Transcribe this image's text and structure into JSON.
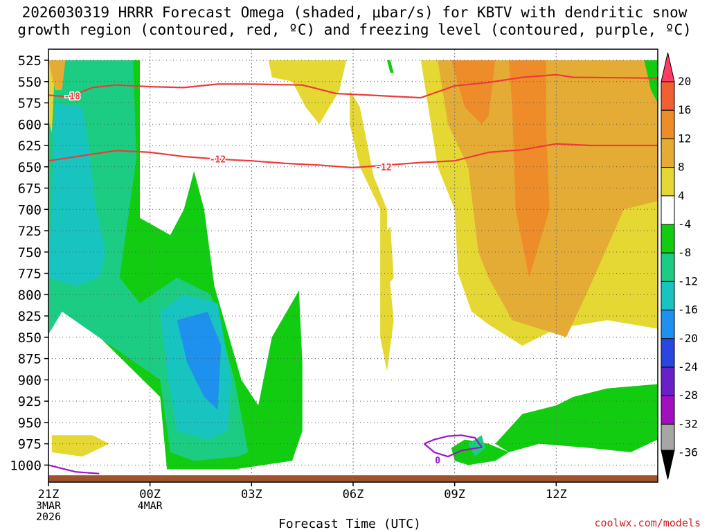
{
  "title_line1": "2026030319 HRRR Forecast Omega (shaded, μbar/s) for KBTV with dendritic snow",
  "title_line2": "growth region (contoured, red, ºC) and freezing level (contoured, purple, ºC)",
  "credit": "coolwx.com/models",
  "chart_data": {
    "type": "heatmap",
    "title": "2026030319 HRRR Forecast Omega (shaded, μbar/s) for KBTV with dendritic snow growth region (contoured, red, ºC) and freezing level (contoured, purple, ºC)",
    "xlabel": "Forecast Time (UTC)",
    "ylabel": "",
    "xlim_hours_from_00z": [
      -3.0,
      15.0
    ],
    "ylim_mb": [
      1020,
      512
    ],
    "y_ticks": [
      525,
      550,
      575,
      600,
      625,
      650,
      675,
      700,
      725,
      750,
      775,
      800,
      825,
      850,
      875,
      900,
      925,
      950,
      975,
      1000
    ],
    "x_ticks": [
      {
        "hour": -3,
        "lines": [
          "21Z",
          "3MAR",
          "2026"
        ]
      },
      {
        "hour": 0,
        "lines": [
          "00Z",
          "4MAR"
        ]
      },
      {
        "hour": 3,
        "lines": [
          "03Z"
        ]
      },
      {
        "hour": 6,
        "lines": [
          "06Z"
        ]
      },
      {
        "hour": 9,
        "lines": [
          "09Z"
        ]
      },
      {
        "hour": 12,
        "lines": [
          "12Z"
        ]
      }
    ],
    "grid": true,
    "colorbar": {
      "labels": [
        "20",
        "16",
        "12",
        "8",
        "4",
        "-4",
        "-8",
        "-12",
        "-16",
        "-20",
        "-24",
        "-28",
        "-32",
        "-36"
      ],
      "bins": [
        {
          "color": "#ff3c64"
        },
        {
          "color": "#f06030"
        },
        {
          "color": "#ee8c2a"
        },
        {
          "color": "#e4ac34"
        },
        {
          "color": "#e6d832"
        },
        {
          "color": "#ffffff"
        },
        {
          "color": "#12cc12"
        },
        {
          "color": "#1ccc82"
        },
        {
          "color": "#18c4c0"
        },
        {
          "color": "#1e90ee"
        },
        {
          "color": "#2a46e0"
        },
        {
          "color": "#6a20c8"
        },
        {
          "color": "#a010c0"
        },
        {
          "color": "#a6a6a6"
        }
      ]
    },
    "omega_regions": [
      {
        "level": "-4",
        "color": "#12cc12",
        "points": [
          [
            -3.8,
            1000
          ],
          [
            -4.0,
            925
          ],
          [
            -3.9,
            760
          ],
          [
            -3.5,
            700
          ],
          [
            -3.2,
            600
          ],
          [
            -3.1,
            525
          ],
          [
            -0.3,
            525
          ],
          [
            -0.3,
            710
          ],
          [
            0.6,
            730
          ],
          [
            1.0,
            700
          ],
          [
            1.3,
            655
          ],
          [
            1.6,
            700
          ],
          [
            1.9,
            790
          ],
          [
            2.7,
            900
          ],
          [
            3.2,
            930
          ],
          [
            3.6,
            850
          ],
          [
            4.4,
            795
          ],
          [
            4.5,
            880
          ],
          [
            4.5,
            960
          ],
          [
            4.2,
            995
          ],
          [
            2.5,
            1005
          ],
          [
            0.5,
            1005
          ],
          [
            0.3,
            920
          ],
          [
            -2.0,
            830
          ],
          [
            -2.7,
            800
          ],
          [
            -3.5,
            930
          ],
          [
            -3.8,
            1000
          ]
        ]
      },
      {
        "level": "-8",
        "color": "#1ccc82",
        "points": [
          [
            -3.7,
            960
          ],
          [
            -3.5,
            800
          ],
          [
            -3.1,
            720
          ],
          [
            -3.0,
            700
          ],
          [
            -3.2,
            525
          ],
          [
            -0.5,
            525
          ],
          [
            -0.4,
            640
          ],
          [
            -0.9,
            780
          ],
          [
            -0.3,
            810
          ],
          [
            0.8,
            780
          ],
          [
            1.8,
            800
          ],
          [
            2.5,
            900
          ],
          [
            2.9,
            985
          ],
          [
            2.6,
            990
          ],
          [
            1.3,
            995
          ],
          [
            0.6,
            985
          ],
          [
            0.3,
            900
          ],
          [
            -2.6,
            820
          ],
          [
            -3.2,
            860
          ],
          [
            -3.7,
            960
          ]
        ]
      },
      {
        "level": "-12",
        "color": "#18c4c0",
        "points": [
          [
            -3.3,
            850
          ],
          [
            -3.4,
            790
          ],
          [
            -3.2,
            775
          ],
          [
            -3.0,
            800
          ],
          [
            -3.1,
            845
          ]
        ]
      },
      {
        "level": "-12",
        "color": "#18c4c0",
        "points": [
          [
            -3.0,
            780
          ],
          [
            -2.9,
            690
          ],
          [
            -2.8,
            575
          ],
          [
            -2.0,
            580
          ],
          [
            -1.8,
            630
          ],
          [
            -1.6,
            700
          ],
          [
            -1.3,
            750
          ],
          [
            -1.5,
            780
          ],
          [
            -2.2,
            790
          ],
          [
            -3.0,
            780
          ]
        ]
      },
      {
        "level": "-12",
        "color": "#18c4c0",
        "points": [
          [
            0.3,
            820
          ],
          [
            1.0,
            800
          ],
          [
            2.0,
            810
          ],
          [
            2.4,
            900
          ],
          [
            2.3,
            960
          ],
          [
            1.7,
            970
          ],
          [
            0.8,
            960
          ],
          [
            0.5,
            890
          ],
          [
            0.3,
            820
          ]
        ]
      },
      {
        "level": "-16",
        "color": "#1e90ee",
        "points": [
          [
            0.8,
            830
          ],
          [
            1.7,
            820
          ],
          [
            2.1,
            860
          ],
          [
            2.0,
            935
          ],
          [
            1.6,
            920
          ],
          [
            1.1,
            880
          ],
          [
            0.8,
            830
          ]
        ]
      },
      {
        "level": "4",
        "color": "#e6d832",
        "points": [
          [
            -3.2,
            525
          ],
          [
            -2.8,
            525
          ],
          [
            -2.9,
            610
          ],
          [
            -3.3,
            550
          ],
          [
            -3.2,
            525
          ]
        ]
      },
      {
        "level": "4",
        "color": "#e6d832",
        "points": [
          [
            -2.9,
            985
          ],
          [
            -2.9,
            965
          ],
          [
            -1.7,
            965
          ],
          [
            -1.2,
            975
          ],
          [
            -2.0,
            990
          ],
          [
            -2.9,
            985
          ]
        ]
      },
      {
        "level": "4",
        "color": "#e6d832",
        "points": [
          [
            3.5,
            525
          ],
          [
            5.8,
            525
          ],
          [
            5.6,
            560
          ],
          [
            5.0,
            600
          ],
          [
            4.6,
            580
          ],
          [
            4.2,
            550
          ],
          [
            3.6,
            545
          ]
        ]
      },
      {
        "level": "4",
        "color": "#e6d832",
        "points": [
          [
            5.9,
            560
          ],
          [
            6.2,
            580
          ],
          [
            6.4,
            620
          ],
          [
            6.6,
            660
          ],
          [
            6.8,
            680
          ],
          [
            7.0,
            700
          ],
          [
            7.0,
            760
          ],
          [
            7.1,
            790
          ],
          [
            7.2,
            830
          ],
          [
            7.0,
            890
          ],
          [
            6.8,
            850
          ],
          [
            6.8,
            790
          ],
          [
            6.8,
            700
          ],
          [
            6.2,
            650
          ],
          [
            5.9,
            600
          ]
        ]
      },
      {
        "level": "4",
        "color": "#e6d832",
        "points": [
          [
            6.9,
            730
          ],
          [
            7.1,
            720
          ],
          [
            7.2,
            780
          ],
          [
            7.0,
            790
          ]
        ]
      },
      {
        "level": "4",
        "color": "#e6d832",
        "points": [
          [
            8.0,
            525
          ],
          [
            15.0,
            525
          ],
          [
            15.0,
            840
          ],
          [
            13.5,
            830
          ],
          [
            12.0,
            840
          ],
          [
            11.0,
            860
          ],
          [
            10.0,
            835
          ],
          [
            9.5,
            820
          ],
          [
            9.1,
            775
          ],
          [
            9.0,
            700
          ],
          [
            8.5,
            650
          ],
          [
            8.0,
            525
          ]
        ]
      },
      {
        "level": "8",
        "color": "#e4ac34",
        "points": [
          [
            -3.0,
            525
          ],
          [
            -2.5,
            525
          ],
          [
            -2.6,
            560
          ],
          [
            -2.8,
            560
          ]
        ]
      },
      {
        "level": "8",
        "color": "#e4ac34",
        "points": [
          [
            8.5,
            525
          ],
          [
            15.0,
            525
          ],
          [
            15.0,
            690
          ],
          [
            14.0,
            700
          ],
          [
            13.0,
            790
          ],
          [
            12.3,
            850
          ],
          [
            11.5,
            840
          ],
          [
            10.7,
            830
          ],
          [
            10.0,
            780
          ],
          [
            9.7,
            750
          ],
          [
            9.4,
            650
          ],
          [
            8.8,
            600
          ],
          [
            8.5,
            525
          ]
        ]
      },
      {
        "level": "12",
        "color": "#ee8c2a",
        "points": [
          [
            8.9,
            525
          ],
          [
            10.2,
            525
          ],
          [
            10.1,
            560
          ],
          [
            10.0,
            590
          ],
          [
            9.8,
            600
          ],
          [
            9.3,
            580
          ]
        ]
      },
      {
        "level": "12",
        "color": "#ee8c2a",
        "points": [
          [
            10.6,
            525
          ],
          [
            11.7,
            525
          ],
          [
            11.7,
            600
          ],
          [
            11.8,
            700
          ],
          [
            11.2,
            780
          ],
          [
            10.8,
            700
          ],
          [
            10.7,
            580
          ]
        ]
      },
      {
        "level": "-4",
        "color": "#12cc12",
        "points": [
          [
            8.9,
            980
          ],
          [
            9.3,
            970
          ],
          [
            10.0,
            975
          ],
          [
            10.6,
            985
          ],
          [
            10.2,
            995
          ],
          [
            9.4,
            1000
          ],
          [
            9.0,
            995
          ]
        ]
      },
      {
        "level": "-4",
        "color": "#12cc12",
        "points": [
          [
            10.2,
            975
          ],
          [
            11.0,
            940
          ],
          [
            12.0,
            930
          ],
          [
            12.5,
            920
          ],
          [
            13.5,
            910
          ],
          [
            15.0,
            905
          ],
          [
            15.0,
            970
          ],
          [
            14.2,
            985
          ],
          [
            13.0,
            980
          ],
          [
            11.5,
            975
          ],
          [
            10.6,
            985
          ]
        ]
      },
      {
        "level": "-4",
        "color": "#12cc12",
        "points": [
          [
            7.0,
            525
          ],
          [
            7.1,
            525
          ],
          [
            7.2,
            540
          ],
          [
            7.1,
            540
          ]
        ]
      },
      {
        "level": "-4",
        "color": "#12cc12",
        "points": [
          [
            14.6,
            525
          ],
          [
            15.0,
            525
          ],
          [
            15.0,
            575
          ],
          [
            14.8,
            560
          ]
        ]
      },
      {
        "level": "-8",
        "color": "#1ccc82",
        "points": [
          [
            9.4,
            975
          ],
          [
            9.8,
            965
          ],
          [
            9.9,
            980
          ],
          [
            9.6,
            990
          ]
        ]
      }
    ],
    "contours": [
      {
        "quantity": "temperature",
        "level": "-18",
        "color": "#ee3a3a",
        "points": [
          [
            -3.0,
            566
          ],
          [
            -2.4,
            568
          ],
          [
            -1.7,
            557
          ],
          [
            -1.0,
            554
          ],
          [
            0.0,
            556
          ],
          [
            1.0,
            557
          ],
          [
            2.0,
            553
          ],
          [
            3.0,
            553
          ],
          [
            4.5,
            554
          ],
          [
            5.5,
            564
          ],
          [
            6.5,
            566
          ],
          [
            8.0,
            569
          ],
          [
            9.0,
            555
          ],
          [
            10.0,
            551
          ],
          [
            11.0,
            545
          ],
          [
            12.0,
            542
          ],
          [
            12.5,
            545
          ],
          [
            15.0,
            546
          ]
        ]
      },
      {
        "quantity": "temperature",
        "level": "-12",
        "color": "#ee3a3a",
        "points": [
          [
            -3.0,
            643
          ],
          [
            -2.0,
            637
          ],
          [
            -1.0,
            631
          ],
          [
            0.0,
            633
          ],
          [
            1.0,
            638
          ],
          [
            2.0,
            641
          ],
          [
            3.0,
            643
          ],
          [
            4.0,
            646
          ],
          [
            5.0,
            648
          ],
          [
            6.0,
            651
          ],
          [
            7.0,
            648
          ],
          [
            8.0,
            645
          ],
          [
            9.0,
            643
          ],
          [
            10.0,
            633
          ],
          [
            11.0,
            630
          ],
          [
            12.0,
            623
          ],
          [
            13.0,
            625
          ],
          [
            15.0,
            625
          ]
        ]
      },
      {
        "quantity": "freezing level",
        "level": "0",
        "color": "#9a14c8",
        "points": [
          [
            -3.0,
            1000
          ],
          [
            -2.2,
            1008
          ],
          [
            -1.5,
            1010
          ]
        ]
      },
      {
        "quantity": "freezing level",
        "level": "0",
        "color": "#9a14c8",
        "points": [
          [
            8.1,
            975
          ],
          [
            8.4,
            970
          ],
          [
            8.8,
            966
          ],
          [
            9.2,
            965
          ],
          [
            9.6,
            968
          ],
          [
            9.8,
            979
          ],
          [
            9.2,
            983
          ],
          [
            8.8,
            990
          ],
          [
            8.4,
            985
          ],
          [
            8.1,
            975
          ]
        ]
      }
    ],
    "contour_labels": [
      {
        "text": "-18",
        "hour": -2.3,
        "mb": 567
      },
      {
        "text": "-12",
        "hour": 2.0,
        "mb": 641
      },
      {
        "text": "-12",
        "hour": 6.9,
        "mb": 650
      },
      {
        "text": "0",
        "hour": 8.5,
        "mb": 994
      }
    ],
    "terrain": {
      "color": "#a0522d",
      "top_mb": 1012
    }
  }
}
